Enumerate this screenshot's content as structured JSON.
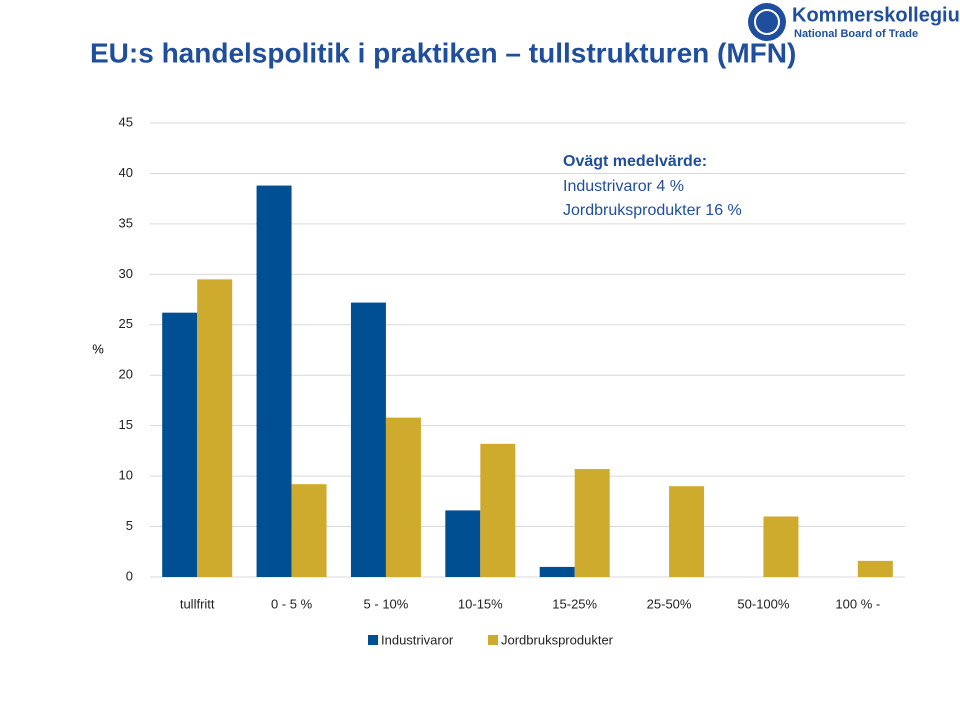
{
  "logo": {
    "name": "Kommerskollegium",
    "subtitle": "National Board of Trade"
  },
  "chart_data": {
    "type": "bar",
    "title": "EU:s handelspolitik i praktiken – tullstrukturen (MFN)",
    "y_label": "%",
    "annotation": [
      "Ovägt medelvärde:",
      "Industrivaror 4 %",
      "Jordbruksprodukter 16 %"
    ],
    "categories": [
      "tullfritt",
      "0 - 5 %",
      "5 - 10%",
      "10-15%",
      "15-25%",
      "25-50%",
      "50-100%",
      "100 % -"
    ],
    "series": [
      {
        "name": "Industrivaror",
        "color": "#004f93",
        "values": [
          26.2,
          38.8,
          27.2,
          6.6,
          1.0,
          0,
          0,
          0
        ]
      },
      {
        "name": "Jordbruksprodukter",
        "color": "#cfab2d",
        "values": [
          29.5,
          9.2,
          15.8,
          13.2,
          10.7,
          9.0,
          6.0,
          1.6
        ]
      }
    ],
    "ylim": [
      0,
      45
    ],
    "yticks": [
      0,
      5,
      10,
      15,
      20,
      25,
      30,
      35,
      40,
      45
    ],
    "grid": true
  }
}
